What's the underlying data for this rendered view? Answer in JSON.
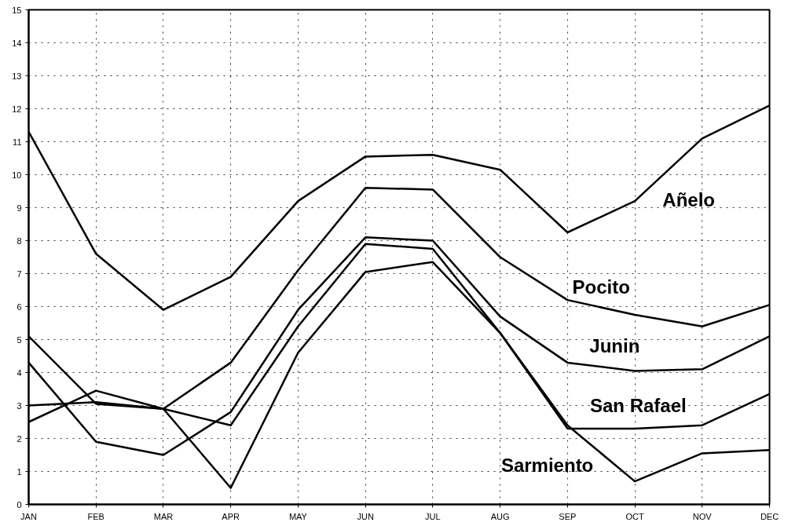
{
  "chart_data": {
    "type": "line",
    "categories": [
      "JAN",
      "FEB",
      "MAR",
      "APR",
      "MAY",
      "JUN",
      "JUL",
      "AUG",
      "SEP",
      "OCT",
      "NOV",
      "DEC"
    ],
    "series": [
      {
        "name": "Añelo",
        "color": "#000000",
        "values": [
          11.3,
          7.6,
          5.9,
          6.9,
          9.2,
          10.55,
          10.6,
          10.15,
          8.25,
          9.2,
          11.1,
          12.1
        ]
      },
      {
        "name": "Pocito",
        "color": "#000000",
        "values": [
          2.5,
          3.45,
          2.9,
          4.3,
          7.1,
          9.6,
          9.55,
          7.5,
          6.2,
          5.75,
          5.4,
          6.05
        ]
      },
      {
        "name": "Junin",
        "color": "#000000",
        "values": [
          4.3,
          1.9,
          1.5,
          2.8,
          5.9,
          8.1,
          8.0,
          5.7,
          4.3,
          4.05,
          4.1,
          5.1
        ]
      },
      {
        "name": "San Rafael",
        "color": "#000000",
        "values": [
          3.0,
          3.1,
          2.9,
          2.4,
          5.4,
          7.9,
          7.75,
          5.2,
          2.3,
          2.3,
          2.4,
          3.35
        ]
      },
      {
        "name": "Sarmiento",
        "color": "#000000",
        "values": [
          5.1,
          3.05,
          2.9,
          0.5,
          4.6,
          7.05,
          7.35,
          5.2,
          2.4,
          0.7,
          1.55,
          1.65
        ]
      }
    ],
    "ylim": [
      0,
      15
    ],
    "yticks": [
      0,
      1,
      2,
      3,
      4,
      5,
      6,
      7,
      8,
      9,
      10,
      11,
      12,
      13,
      14,
      15
    ],
    "grid": true,
    "marker": "none",
    "line_style": "solid"
  }
}
